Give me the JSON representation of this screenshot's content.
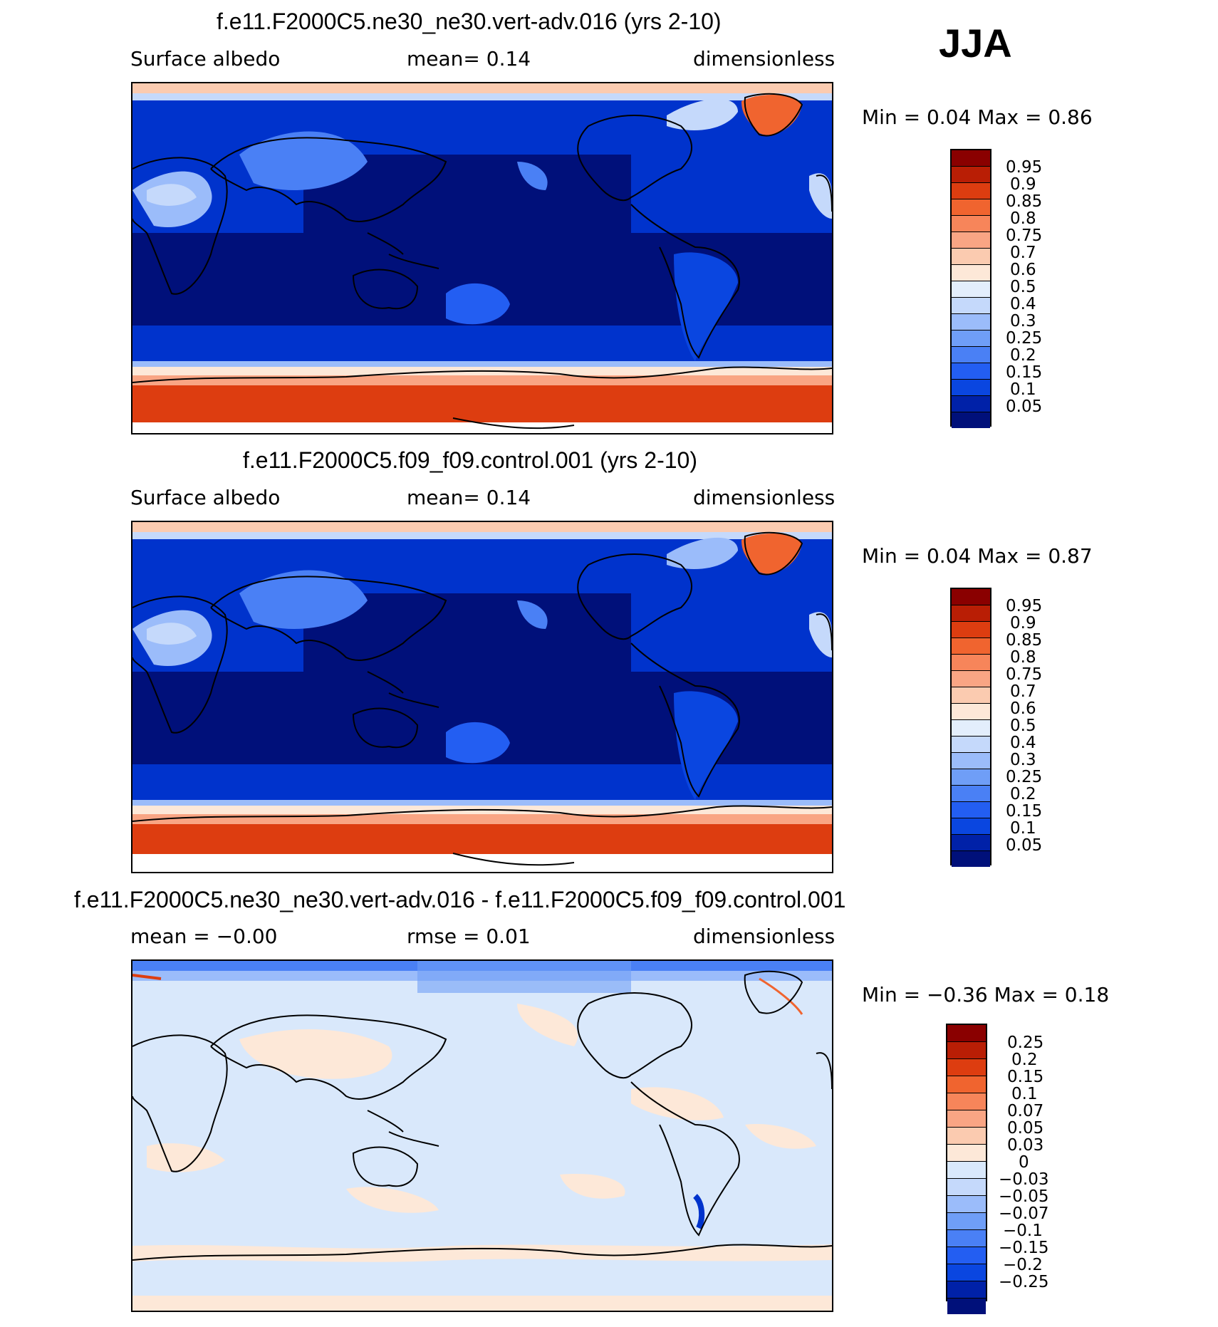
{
  "season": "JJA",
  "palette_abs": [
    "#00107a",
    "#0021a8",
    "#0033cc",
    "#0a46e0",
    "#235ef2",
    "#4a80f5",
    "#6f9ef7",
    "#9bbcfa",
    "#c5d9fb",
    "#e3eefc",
    "#fde8d8",
    "#fbcbb0",
    "#f9a584",
    "#f7855a",
    "#f0642f",
    "#dd3d10",
    "#b91e05",
    "#8a0000"
  ],
  "palette_diff": [
    "#00107a",
    "#0021a8",
    "#0a46e0",
    "#235ef2",
    "#4a80f5",
    "#6f9ef7",
    "#9bbcfa",
    "#c5d9fb",
    "#d9e8fb",
    "#fde8d8",
    "#fbcbb0",
    "#f9a584",
    "#f7855a",
    "#f0642f",
    "#dd3d10",
    "#b91e05",
    "#8a0000"
  ],
  "panels": [
    {
      "title": "f.e11.F2000C5.ne30_ne30.vert-adv.016 (yrs 2-10)",
      "variable": "Surface albedo",
      "stat": "mean=   0.14",
      "units": "dimensionless",
      "minmax": "Min =    0.04  Max =    0.86",
      "ticks": [
        "0.95",
        "0.9",
        "0.85",
        "0.8",
        "0.75",
        "0.7",
        "0.6",
        "0.5",
        "0.4",
        "0.3",
        "0.25",
        "0.2",
        "0.15",
        "0.1",
        "0.05"
      ]
    },
    {
      "title": "f.e11.F2000C5.f09_f09.control.001 (yrs 2-10)",
      "variable": "Surface albedo",
      "stat": "mean=   0.14",
      "units": "dimensionless",
      "minmax": "Min =    0.04  Max =    0.87",
      "ticks": [
        "0.95",
        "0.9",
        "0.85",
        "0.8",
        "0.75",
        "0.7",
        "0.6",
        "0.5",
        "0.4",
        "0.3",
        "0.25",
        "0.2",
        "0.15",
        "0.1",
        "0.05"
      ]
    },
    {
      "title": "f.e11.F2000C5.ne30_ne30.vert-adv.016 - f.e11.F2000C5.f09_f09.control.001",
      "variable": "mean =  −0.00",
      "stat": "rmse =    0.01",
      "units": "dimensionless",
      "minmax": "Min =   −0.36  Max =    0.18",
      "ticks": [
        "0.25",
        "0.2",
        "0.15",
        "0.1",
        "0.07",
        "0.05",
        "0.03",
        "0",
        "−0.03",
        "−0.05",
        "−0.07",
        "−0.1",
        "−0.15",
        "−0.2",
        "−0.25"
      ]
    }
  ]
}
